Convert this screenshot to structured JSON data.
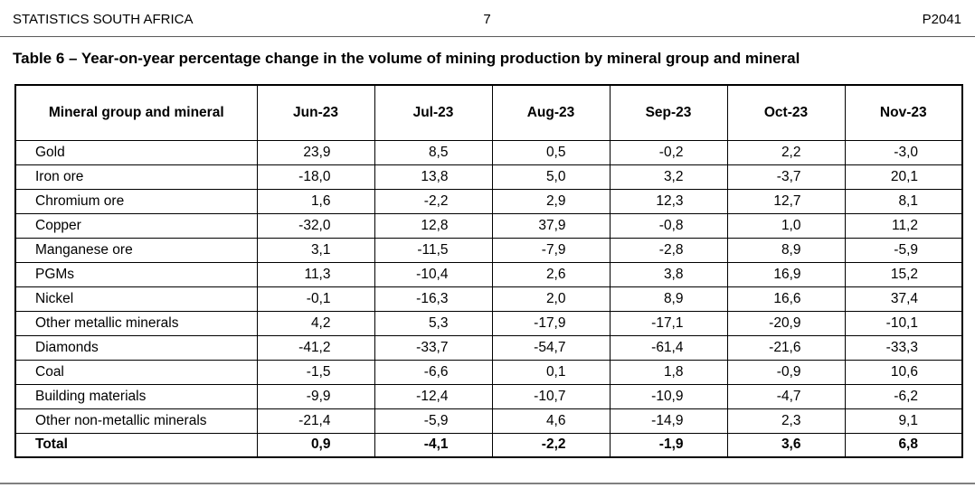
{
  "page_header": {
    "left": "STATISTICS SOUTH AFRICA",
    "page_number": "7",
    "report_code": "P2041"
  },
  "title": "Table 6 – Year-on-year percentage change in the volume of mining production by mineral group and mineral",
  "table": {
    "columns": [
      "Mineral group and mineral",
      "Jun-23",
      "Jul-23",
      "Aug-23",
      "Sep-23",
      "Oct-23",
      "Nov-23"
    ],
    "rows": [
      {
        "label": "Gold",
        "values": [
          "23,9",
          "8,5",
          "0,5",
          "-0,2",
          "2,2",
          "-3,0"
        ],
        "bold": false
      },
      {
        "label": "Iron ore",
        "values": [
          "-18,0",
          "13,8",
          "5,0",
          "3,2",
          "-3,7",
          "20,1"
        ],
        "bold": false
      },
      {
        "label": "Chromium ore",
        "values": [
          "1,6",
          "-2,2",
          "2,9",
          "12,3",
          "12,7",
          "8,1"
        ],
        "bold": false
      },
      {
        "label": "Copper",
        "values": [
          "-32,0",
          "12,8",
          "37,9",
          "-0,8",
          "1,0",
          "11,2"
        ],
        "bold": false
      },
      {
        "label": "Manganese ore",
        "values": [
          "3,1",
          "-11,5",
          "-7,9",
          "-2,8",
          "8,9",
          "-5,9"
        ],
        "bold": false
      },
      {
        "label": "PGMs",
        "values": [
          "11,3",
          "-10,4",
          "2,6",
          "3,8",
          "16,9",
          "15,2"
        ],
        "bold": false
      },
      {
        "label": "Nickel",
        "values": [
          "-0,1",
          "-16,3",
          "2,0",
          "8,9",
          "16,6",
          "37,4"
        ],
        "bold": false
      },
      {
        "label": "Other metallic minerals",
        "values": [
          "4,2",
          "5,3",
          "-17,9",
          "-17,1",
          "-20,9",
          "-10,1"
        ],
        "bold": false
      },
      {
        "label": "Diamonds",
        "values": [
          "-41,2",
          "-33,7",
          "-54,7",
          "-61,4",
          "-21,6",
          "-33,3"
        ],
        "bold": false
      },
      {
        "label": "Coal",
        "values": [
          "-1,5",
          "-6,6",
          "0,1",
          "1,8",
          "-0,9",
          "10,6"
        ],
        "bold": false
      },
      {
        "label": "Building materials",
        "values": [
          "-9,9",
          "-12,4",
          "-10,7",
          "-10,9",
          "-4,7",
          "-6,2"
        ],
        "bold": false
      },
      {
        "label": "Other non-metallic minerals",
        "values": [
          "-21,4",
          "-5,9",
          "4,6",
          "-14,9",
          "2,3",
          "9,1"
        ],
        "bold": false
      },
      {
        "label": "Total",
        "values": [
          "0,9",
          "-4,1",
          "-2,2",
          "-1,9",
          "3,6",
          "6,8"
        ],
        "bold": true
      }
    ]
  }
}
